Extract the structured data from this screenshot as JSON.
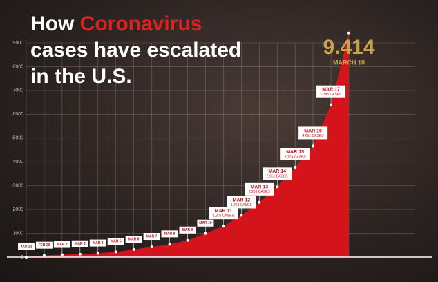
{
  "chart_data": {
    "type": "area",
    "title": [
      "How",
      "Coronavirus",
      "cases have escalated",
      "in the U.S."
    ],
    "categories": [
      "JAN 21",
      "FEB 29",
      "MAR 2",
      "MAR 3",
      "MAR 4",
      "MAR 5",
      "MAR 6",
      "MAR 7",
      "MAR 8",
      "MAR 9",
      "MAR 10",
      "MAR 11",
      "MAR 12",
      "MAR 13",
      "MAR 14",
      "MAR 15",
      "MAR 16",
      "MAR 17",
      "MARCH 18"
    ],
    "values": [
      1,
      68,
      100,
      124,
      158,
      221,
      319,
      435,
      541,
      704,
      994,
      1301,
      1758,
      2299,
      2951,
      3774,
      4661,
      6396,
      9414
    ],
    "value_labels": [
      null,
      null,
      null,
      null,
      null,
      null,
      null,
      null,
      null,
      null,
      null,
      "1,301 CASES",
      "1,758 CASES",
      "2,299 CASES",
      "2,951 CASES",
      "3,774 CASES",
      "4,661 CASES",
      "6,396 CASES",
      "9.414"
    ],
    "color": "#d4141a",
    "ylim": [
      0,
      9000
    ],
    "yticks": [
      0,
      1000,
      2000,
      3000,
      4000,
      5000,
      6000,
      7000,
      8000,
      9000
    ],
    "grid": true
  }
}
